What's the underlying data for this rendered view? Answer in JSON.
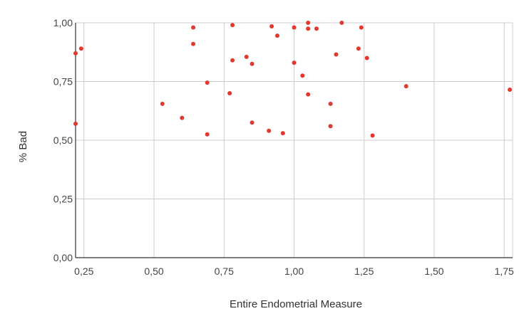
{
  "chart_data": {
    "type": "scatter",
    "title": "",
    "xlabel": "Entire Endometrial Measure",
    "ylabel": "% Bad",
    "xlim": [
      0.22,
      1.78
    ],
    "ylim": [
      0,
      1
    ],
    "grid": true,
    "legend": "none",
    "x_ticks": [
      0.25,
      0.5,
      0.75,
      1.0,
      1.25,
      1.5,
      1.75
    ],
    "x_tick_labels": [
      "0,25",
      "0,50",
      "0,75",
      "1,00",
      "1,25",
      "1,50",
      "1,75"
    ],
    "y_ticks": [
      0,
      0.25,
      0.5,
      0.75,
      1.0
    ],
    "y_tick_labels": [
      "0,00",
      "0,25",
      "0,50",
      "0,75",
      "1,00"
    ],
    "point_color": "#e2382d",
    "grid_color": "#cccccc",
    "points": [
      {
        "x": 0.22,
        "y": 0.87
      },
      {
        "x": 0.24,
        "y": 0.89
      },
      {
        "x": 0.22,
        "y": 0.57
      },
      {
        "x": 0.53,
        "y": 0.655
      },
      {
        "x": 0.6,
        "y": 0.595
      },
      {
        "x": 0.64,
        "y": 0.98
      },
      {
        "x": 0.64,
        "y": 0.91
      },
      {
        "x": 0.69,
        "y": 0.745
      },
      {
        "x": 0.69,
        "y": 0.525
      },
      {
        "x": 0.77,
        "y": 0.7
      },
      {
        "x": 0.78,
        "y": 0.99
      },
      {
        "x": 0.78,
        "y": 0.84
      },
      {
        "x": 0.83,
        "y": 0.855
      },
      {
        "x": 0.85,
        "y": 0.825
      },
      {
        "x": 0.85,
        "y": 0.575
      },
      {
        "x": 0.91,
        "y": 0.54
      },
      {
        "x": 0.92,
        "y": 0.985
      },
      {
        "x": 0.94,
        "y": 0.945
      },
      {
        "x": 0.96,
        "y": 0.53
      },
      {
        "x": 1.0,
        "y": 0.98
      },
      {
        "x": 1.0,
        "y": 0.83
      },
      {
        "x": 1.03,
        "y": 0.775
      },
      {
        "x": 1.05,
        "y": 1.0
      },
      {
        "x": 1.05,
        "y": 0.975
      },
      {
        "x": 1.05,
        "y": 0.695
      },
      {
        "x": 1.08,
        "y": 0.975
      },
      {
        "x": 1.13,
        "y": 0.655
      },
      {
        "x": 1.13,
        "y": 0.56
      },
      {
        "x": 1.15,
        "y": 0.865
      },
      {
        "x": 1.17,
        "y": 1.0
      },
      {
        "x": 1.23,
        "y": 0.89
      },
      {
        "x": 1.24,
        "y": 0.98
      },
      {
        "x": 1.26,
        "y": 0.85
      },
      {
        "x": 1.28,
        "y": 0.52
      },
      {
        "x": 1.4,
        "y": 0.73
      },
      {
        "x": 1.77,
        "y": 0.715
      }
    ]
  }
}
